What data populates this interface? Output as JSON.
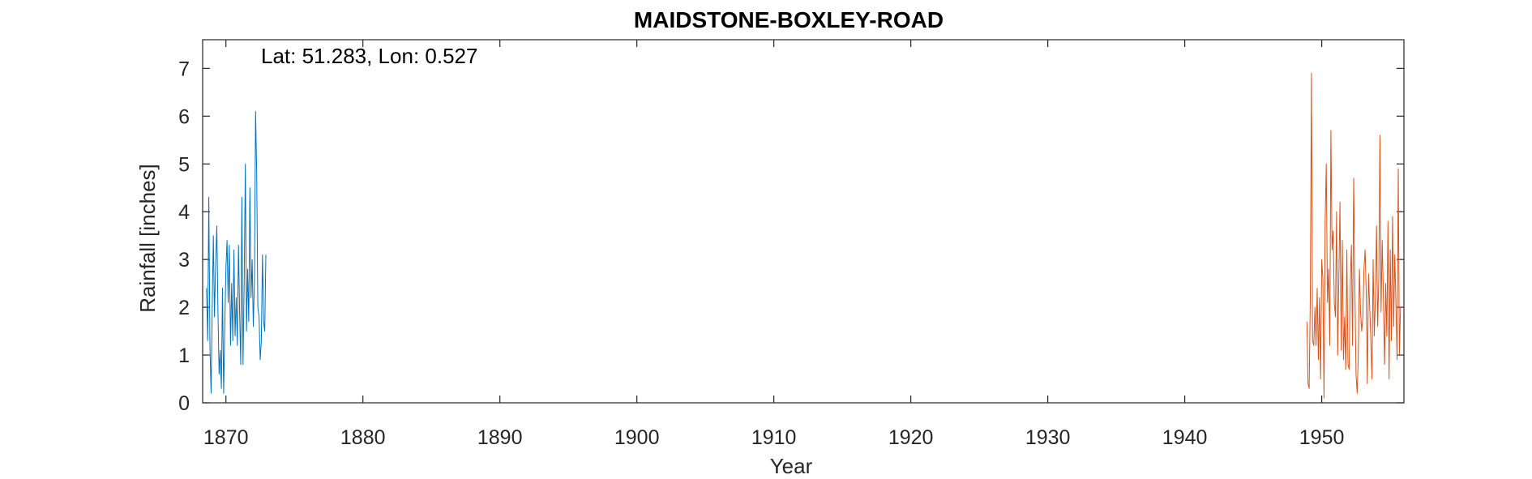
{
  "chart_data": {
    "type": "line",
    "title": "MAIDSTONE-BOXLEY-ROAD",
    "xlabel": "Year",
    "ylabel": "Rainfall [inches]",
    "annotation": "Lat: 51.283, Lon: 0.527",
    "xlim": [
      1868.3,
      1956.0
    ],
    "ylim": [
      0,
      7.6
    ],
    "xticks": [
      1870,
      1880,
      1890,
      1900,
      1910,
      1920,
      1930,
      1940,
      1950
    ],
    "yticks": [
      0,
      1,
      2,
      3,
      4,
      5,
      6,
      7
    ],
    "grid": false,
    "colors": [
      "#0072BD",
      "#D95319"
    ],
    "series": [
      {
        "x_start": 1868.583,
        "step": 0.08333,
        "values": [
          2.4,
          1.3,
          4.3,
          1.2,
          0.2,
          2.0,
          3.5,
          1.8,
          2.9,
          3.7,
          1.9,
          0.6,
          1.1,
          0.3,
          2.4,
          0.2,
          1.6,
          2.8,
          3.4,
          2.1,
          3.3,
          1.2,
          2.5,
          1.3,
          3.2,
          1.4,
          2.2,
          1.2,
          3.3,
          1.9,
          0.8,
          4.3,
          0.8,
          2.6,
          5.0,
          1.5,
          2.8,
          1.7,
          4.5,
          2.2,
          3.0,
          1.6,
          2.6,
          6.1,
          4.8,
          2.0,
          1.8,
          0.9,
          1.3,
          3.1,
          1.7,
          1.5,
          3.1
        ]
      },
      {
        "x_start": 1948.917,
        "step": 0.08333,
        "values": [
          1.7,
          0.4,
          0.3,
          2.2,
          6.9,
          1.3,
          1.2,
          2.0,
          1.2,
          2.4,
          0.9,
          2.2,
          0.5,
          3.0,
          2.6,
          0.1,
          3.8,
          5.0,
          2.1,
          2.8,
          1.2,
          5.7,
          3.2,
          3.6,
          2.1,
          1.8,
          4.0,
          1.0,
          2.6,
          4.2,
          1.1,
          3.4,
          0.9,
          1.8,
          0.7,
          3.2,
          0.8,
          0.7,
          2.5,
          3.3,
          1.2,
          4.7,
          2.4,
          0.6,
          0.2,
          1.0,
          2.8,
          1.9,
          1.5,
          1.8,
          2.8,
          3.2,
          2.3,
          0.4,
          2.7,
          2.0,
          1.3,
          0.5,
          3.0,
          1.4,
          2.2,
          3.7,
          1.6,
          2.6,
          5.6,
          1.9,
          3.4,
          2.2,
          0.8,
          2.5,
          1.4,
          3.8,
          0.5,
          3.2,
          1.3,
          3.9,
          1.6,
          3.1,
          2.1,
          0.9,
          4.9,
          1.0,
          2.0
        ]
      }
    ]
  }
}
